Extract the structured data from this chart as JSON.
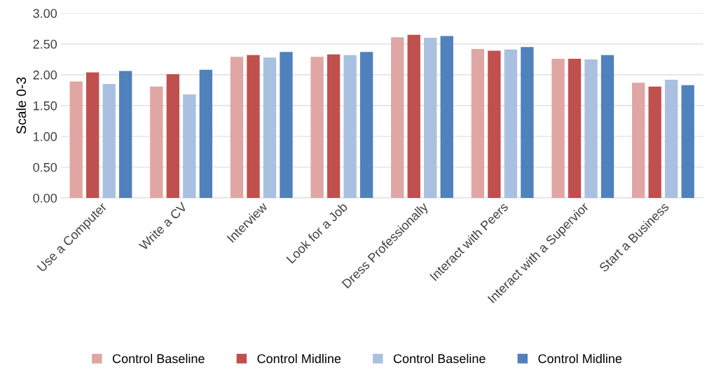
{
  "chart_data": {
    "type": "bar",
    "ylabel": "Scale 0-3",
    "categories": [
      "Use a Computer",
      "Write a CV",
      "Interview",
      "Look for a Job",
      "Dress Professionally",
      "Interact with Peers",
      "Interact with a Supervior",
      "Start a Business"
    ],
    "series": [
      {
        "name": "Control Baseline",
        "color": "#e0a6a4",
        "values": [
          1.89,
          1.81,
          2.29,
          2.29,
          2.61,
          2.42,
          2.26,
          1.87
        ]
      },
      {
        "name": "Control Midline",
        "color": "#c0504d",
        "values": [
          2.04,
          2.01,
          2.32,
          2.33,
          2.65,
          2.39,
          2.26,
          1.81
        ]
      },
      {
        "name": "Control Baseline",
        "color": "#a9c0e0",
        "values": [
          1.85,
          1.68,
          2.28,
          2.32,
          2.6,
          2.41,
          2.25,
          1.92
        ]
      },
      {
        "name": "Control Midline",
        "color": "#4f81bd",
        "values": [
          2.06,
          2.08,
          2.37,
          2.37,
          2.63,
          2.45,
          2.32,
          1.83
        ]
      }
    ],
    "ylim": [
      0,
      3
    ],
    "yticks": [
      {
        "value": 0,
        "label": "0.00"
      },
      {
        "value": 0.5,
        "label": "0.50"
      },
      {
        "value": 1,
        "label": "1.00"
      },
      {
        "value": 1.5,
        "label": "1.50"
      },
      {
        "value": 2,
        "label": "2.00"
      },
      {
        "value": 2.5,
        "label": "2.50"
      },
      {
        "value": 3,
        "label": "3.00"
      }
    ],
    "grid": "y",
    "legend": "bottom"
  }
}
